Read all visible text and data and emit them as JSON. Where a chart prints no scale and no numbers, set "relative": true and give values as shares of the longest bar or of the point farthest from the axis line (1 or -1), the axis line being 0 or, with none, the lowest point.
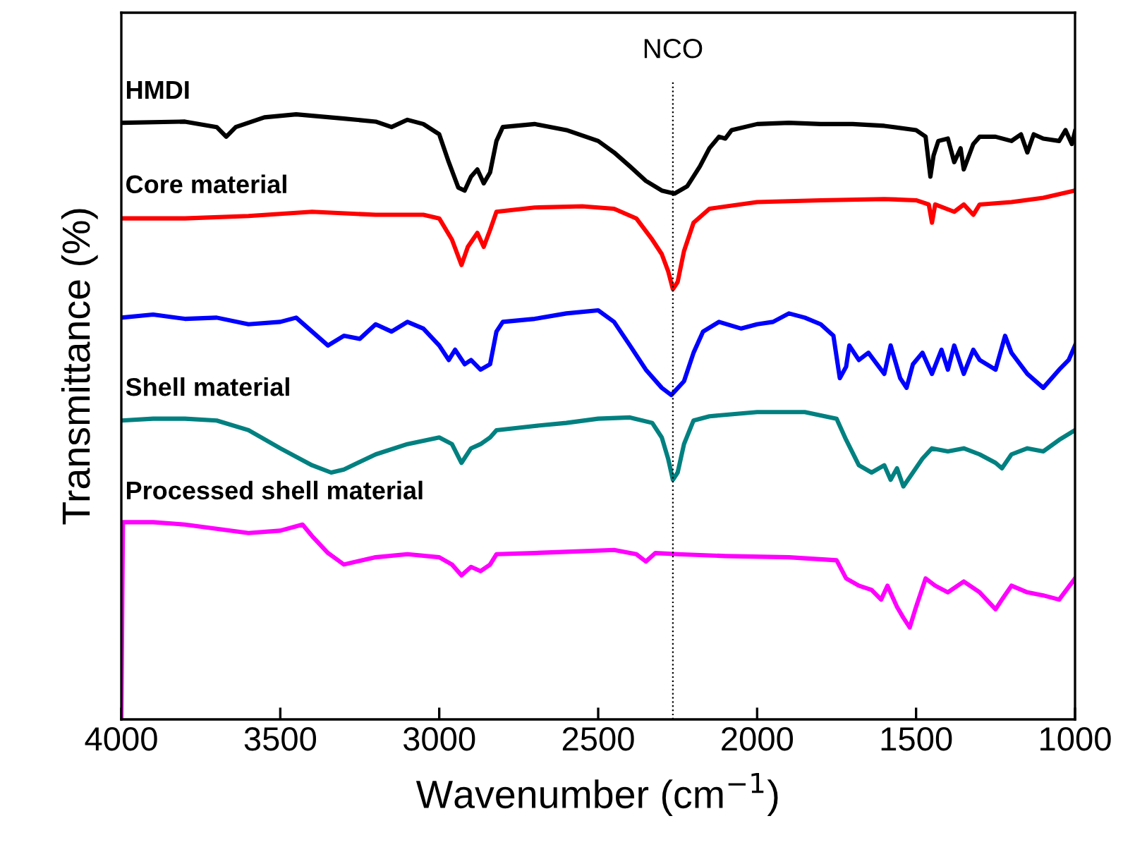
{
  "chart_data": {
    "type": "line",
    "relative": true,
    "xlabel": "Wavenumber (cm$^{−1}$)",
    "ylabel": "Transmittance (%)",
    "xlim": [
      4000,
      1000
    ],
    "xticks": [
      4000,
      3500,
      3000,
      2500,
      2000,
      1500,
      1000
    ],
    "tick_labels": "x",
    "grid": false,
    "legend": false,
    "marker": "none",
    "line_style": "solid",
    "ref_lines": [
      {
        "axis": "x",
        "value": 2265,
        "label": "NCO",
        "color": "#000000",
        "line_style": "dotted"
      }
    ],
    "series": [
      {
        "name": "HMDI",
        "color": "#000000",
        "x": [
          4000,
          3800,
          3700,
          3670,
          3640,
          3550,
          3450,
          3300,
          3200,
          3150,
          3100,
          3050,
          3000,
          2970,
          2940,
          2920,
          2900,
          2880,
          2860,
          2840,
          2820,
          2800,
          2700,
          2600,
          2500,
          2450,
          2400,
          2350,
          2300,
          2260,
          2220,
          2180,
          2150,
          2120,
          2100,
          2080,
          2000,
          1900,
          1800,
          1700,
          1600,
          1500,
          1470,
          1455,
          1445,
          1430,
          1400,
          1380,
          1360,
          1350,
          1320,
          1300,
          1250,
          1200,
          1170,
          1150,
          1130,
          1100,
          1050,
          1030,
          1010,
          1000
        ],
        "values": [
          0.986,
          0.988,
          0.979,
          0.963,
          0.979,
          0.995,
          1.0,
          0.993,
          0.988,
          0.979,
          0.991,
          0.984,
          0.967,
          0.921,
          0.879,
          0.874,
          0.897,
          0.909,
          0.886,
          0.904,
          0.956,
          0.979,
          0.984,
          0.974,
          0.956,
          0.937,
          0.914,
          0.89,
          0.874,
          0.869,
          0.881,
          0.914,
          0.944,
          0.963,
          0.96,
          0.974,
          0.984,
          0.986,
          0.984,
          0.984,
          0.981,
          0.974,
          0.963,
          0.897,
          0.932,
          0.956,
          0.96,
          0.921,
          0.944,
          0.909,
          0.951,
          0.963,
          0.963,
          0.956,
          0.967,
          0.937,
          0.967,
          0.96,
          0.956,
          0.974,
          0.951,
          0.972
        ]
      },
      {
        "name": "Core material",
        "color": "#ff0000",
        "x": [
          4000,
          3800,
          3600,
          3400,
          3200,
          3050,
          3000,
          2960,
          2930,
          2910,
          2880,
          2860,
          2840,
          2820,
          2700,
          2550,
          2450,
          2380,
          2330,
          2300,
          2280,
          2265,
          2250,
          2230,
          2200,
          2150,
          2000,
          1800,
          1600,
          1500,
          1460,
          1450,
          1440,
          1380,
          1350,
          1320,
          1300,
          1200,
          1100,
          1000
        ],
        "values": [
          0.828,
          0.828,
          0.832,
          0.839,
          0.834,
          0.834,
          0.828,
          0.793,
          0.751,
          0.781,
          0.804,
          0.781,
          0.809,
          0.839,
          0.846,
          0.848,
          0.844,
          0.828,
          0.793,
          0.769,
          0.741,
          0.711,
          0.723,
          0.774,
          0.821,
          0.844,
          0.855,
          0.858,
          0.86,
          0.858,
          0.851,
          0.821,
          0.851,
          0.839,
          0.851,
          0.834,
          0.851,
          0.855,
          0.862,
          0.874
        ]
      },
      {
        "color": "#0000ff",
        "x": [
          4000,
          3900,
          3800,
          3700,
          3600,
          3500,
          3450,
          3400,
          3350,
          3300,
          3250,
          3200,
          3150,
          3100,
          3050,
          3000,
          2970,
          2950,
          2920,
          2900,
          2870,
          2840,
          2820,
          2800,
          2700,
          2600,
          2500,
          2450,
          2400,
          2350,
          2300,
          2270,
          2230,
          2200,
          2170,
          2120,
          2050,
          2000,
          1950,
          1900,
          1850,
          1800,
          1760,
          1740,
          1720,
          1710,
          1680,
          1650,
          1600,
          1580,
          1550,
          1530,
          1510,
          1480,
          1450,
          1420,
          1400,
          1380,
          1350,
          1320,
          1300,
          1250,
          1220,
          1200,
          1150,
          1100,
          1050,
          1020,
          1000
        ],
        "values": [
          0.664,
          0.669,
          0.662,
          0.664,
          0.653,
          0.657,
          0.664,
          0.641,
          0.618,
          0.634,
          0.629,
          0.653,
          0.641,
          0.657,
          0.646,
          0.618,
          0.594,
          0.611,
          0.587,
          0.594,
          0.578,
          0.587,
          0.641,
          0.657,
          0.662,
          0.671,
          0.676,
          0.657,
          0.618,
          0.578,
          0.548,
          0.536,
          0.559,
          0.606,
          0.641,
          0.657,
          0.646,
          0.653,
          0.657,
          0.671,
          0.664,
          0.653,
          0.634,
          0.564,
          0.583,
          0.618,
          0.594,
          0.606,
          0.571,
          0.618,
          0.564,
          0.548,
          0.587,
          0.606,
          0.571,
          0.611,
          0.578,
          0.618,
          0.571,
          0.611,
          0.594,
          0.578,
          0.634,
          0.606,
          0.571,
          0.548,
          0.578,
          0.594,
          0.618
        ]
      },
      {
        "name": "Shell material",
        "color": "#008080",
        "x": [
          4000,
          3900,
          3800,
          3700,
          3600,
          3500,
          3400,
          3340,
          3300,
          3200,
          3100,
          3000,
          2960,
          2930,
          2900,
          2870,
          2840,
          2820,
          2700,
          2600,
          2500,
          2400,
          2330,
          2300,
          2280,
          2265,
          2250,
          2230,
          2200,
          2150,
          2000,
          1850,
          1750,
          1720,
          1680,
          1640,
          1600,
          1580,
          1560,
          1540,
          1510,
          1480,
          1450,
          1400,
          1350,
          1300,
          1250,
          1230,
          1200,
          1150,
          1100,
          1050,
          1000
        ],
        "values": [
          0.494,
          0.497,
          0.497,
          0.494,
          0.478,
          0.448,
          0.42,
          0.408,
          0.413,
          0.438,
          0.455,
          0.466,
          0.455,
          0.424,
          0.448,
          0.455,
          0.466,
          0.478,
          0.485,
          0.49,
          0.497,
          0.499,
          0.49,
          0.466,
          0.431,
          0.396,
          0.408,
          0.455,
          0.494,
          0.501,
          0.508,
          0.508,
          0.497,
          0.462,
          0.42,
          0.408,
          0.42,
          0.396,
          0.415,
          0.385,
          0.408,
          0.431,
          0.448,
          0.443,
          0.448,
          0.438,
          0.424,
          0.415,
          0.438,
          0.448,
          0.443,
          0.462,
          0.478
        ]
      },
      {
        "name": "Processed shell material",
        "color": "#ff00ff",
        "x": [
          4000,
          3995,
          3900,
          3800,
          3700,
          3600,
          3500,
          3430,
          3400,
          3350,
          3300,
          3200,
          3100,
          3000,
          2960,
          2930,
          2900,
          2870,
          2840,
          2820,
          2700,
          2600,
          2450,
          2380,
          2350,
          2320,
          2250,
          2100,
          1900,
          1750,
          1720,
          1680,
          1640,
          1610,
          1590,
          1560,
          1540,
          1520,
          1500,
          1470,
          1440,
          1400,
          1350,
          1300,
          1250,
          1230,
          1200,
          1150,
          1100,
          1050,
          1000
        ],
        "values": [
          0,
          0.326,
          0.326,
          0.322,
          0.315,
          0.308,
          0.312,
          0.322,
          0.303,
          0.275,
          0.256,
          0.268,
          0.273,
          0.268,
          0.256,
          0.238,
          0.252,
          0.245,
          0.256,
          0.273,
          0.275,
          0.277,
          0.28,
          0.273,
          0.261,
          0.275,
          0.273,
          0.27,
          0.268,
          0.263,
          0.233,
          0.221,
          0.214,
          0.198,
          0.221,
          0.186,
          0.168,
          0.152,
          0.186,
          0.233,
          0.221,
          0.21,
          0.228,
          0.21,
          0.182,
          0.198,
          0.221,
          0.21,
          0.205,
          0.198,
          0.233
        ]
      }
    ]
  }
}
